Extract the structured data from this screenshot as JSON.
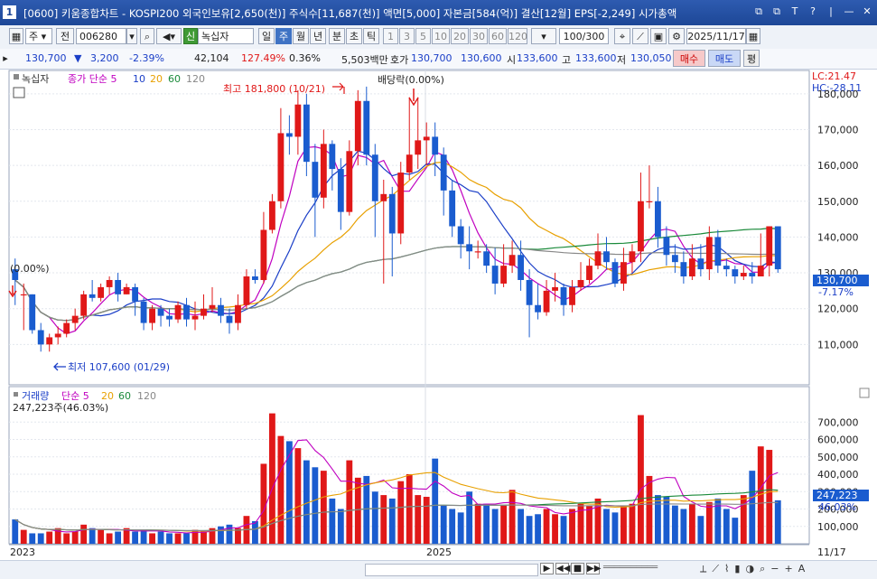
{
  "window": {
    "app_num": "1",
    "title": "[0600] 키움종합차트 - KOSPI200 외국인보유[2,650(천)] 주식수[11,687(천)] 액면[5,000] 자본금[584(억)] 결산[12월] EPS[-2,249] 시가총액",
    "buttons": [
      "⧉",
      "⧉",
      "T",
      "?",
      "|",
      "—",
      "✕"
    ]
  },
  "toolbar": {
    "period_day": "주",
    "stock_prefix": "전",
    "stock_code": "006280",
    "sound_icon": "speaker-icon",
    "stock_name_tag": "신",
    "stock_name": "녹십자",
    "periods": [
      "일",
      "주",
      "월",
      "년",
      "분",
      "초",
      "틱"
    ],
    "selected_period": "주",
    "intervals": [
      "1",
      "3",
      "5",
      "10",
      "20",
      "30",
      "60",
      "120"
    ],
    "count": "100/300",
    "date": "2025/11/17"
  },
  "quote": {
    "price": "130,700",
    "change": "3,200",
    "change_pct": "-2.39%",
    "volume": "42,104",
    "vol_ratio": "127.49%",
    "turnover": "0.36%",
    "amount": "5,503백만",
    "bid_label": "호가",
    "bid": "130,700",
    "ask": "130,600",
    "open_label": "시",
    "open": "133,600",
    "high_label": "고",
    "high": "133,600",
    "low_label": "저",
    "low": "130,050",
    "buy": "매수",
    "sell": "매도",
    "eval": "평"
  },
  "price_panel": {
    "legend_name": "녹십자",
    "legend_ma": "종가 단순",
    "ma_periods": [
      "5",
      "10",
      "20",
      "60",
      "120"
    ],
    "ma_colors": [
      "#c000c0",
      "#1a3ec7",
      "#e8a000",
      "#1a8a3a",
      "#888888"
    ],
    "lc": "LC:21.47",
    "hc": "HC:-28.11",
    "high_marker": "최고 181,800 (10/21)",
    "low_marker": "최저 107,600 (01/29)",
    "dividend_marker": "배당락(0.00%)",
    "left_marker": "(0.00%)",
    "y_ticks": [
      "180,000",
      "170,000",
      "160,000",
      "150,000",
      "140,000",
      "130,000",
      "120,000",
      "110,000"
    ],
    "current_price_label": "130,700",
    "current_change_label": "-7.17%"
  },
  "volume_panel": {
    "legend_name": "거래량",
    "legend_ma": "단순",
    "ma_periods": [
      "5",
      "20",
      "60",
      "120"
    ],
    "current_label": "247,223주(46.03%)",
    "y_ticks": [
      "700,000",
      "600,000",
      "500,000",
      "400,000",
      "300,000",
      "200,000",
      "100,000"
    ],
    "right_value": "247,223",
    "right_pct": "46.03%"
  },
  "x_axis": {
    "labels": [
      "2023",
      "2025"
    ],
    "right_label": "11/17"
  },
  "colors": {
    "up": "#e01818",
    "down": "#1a5ccf",
    "title_bg": "#1d4797"
  },
  "chart_data": {
    "type": "candlestick",
    "y_range": [
      100000,
      185000
    ],
    "candles": [
      [
        131,
        128,
        134,
        121
      ],
      [
        124,
        124,
        127,
        114
      ],
      [
        124,
        114,
        124,
        113
      ],
      [
        114,
        110,
        116,
        108
      ],
      [
        110,
        112,
        113,
        108
      ],
      [
        112,
        113,
        115,
        110
      ],
      [
        113,
        116,
        117,
        112
      ],
      [
        116,
        118,
        120,
        114
      ],
      [
        118,
        124,
        125,
        117
      ],
      [
        124,
        123,
        128,
        122
      ],
      [
        123,
        126,
        127,
        122
      ],
      [
        126,
        128,
        129,
        124
      ],
      [
        128,
        124,
        130,
        122
      ],
      [
        124,
        126,
        127,
        124
      ],
      [
        126,
        122,
        127,
        118
      ],
      [
        122,
        116,
        123,
        114
      ],
      [
        116,
        120,
        121,
        114
      ],
      [
        120,
        118,
        121,
        115
      ],
      [
        118,
        117,
        120,
        115
      ],
      [
        117,
        121,
        122,
        116
      ],
      [
        121,
        117,
        123,
        115
      ],
      [
        117,
        118,
        122,
        114
      ],
      [
        118,
        120,
        124,
        117
      ],
      [
        120,
        121,
        126,
        119
      ],
      [
        121,
        118,
        123,
        116
      ],
      [
        118,
        116,
        120,
        113
      ],
      [
        116,
        121,
        124,
        114
      ],
      [
        121,
        129,
        131,
        120
      ],
      [
        129,
        128,
        131,
        127
      ],
      [
        128,
        142,
        147,
        127
      ],
      [
        142,
        150,
        152,
        141
      ],
      [
        150,
        169,
        176,
        148
      ],
      [
        169,
        168,
        174,
        163
      ],
      [
        168,
        177,
        181,
        163
      ],
      [
        177,
        161,
        180,
        157
      ],
      [
        161,
        151,
        166,
        140
      ],
      [
        151,
        166,
        170,
        148
      ],
      [
        166,
        159,
        167,
        153
      ],
      [
        159,
        147,
        162,
        142
      ],
      [
        147,
        164,
        167,
        146
      ],
      [
        164,
        178,
        181,
        160
      ],
      [
        178,
        163,
        182,
        160
      ],
      [
        163,
        150,
        166,
        140
      ],
      [
        150,
        152,
        156,
        127
      ],
      [
        152,
        141,
        154,
        129
      ],
      [
        141,
        158,
        161,
        138
      ],
      [
        158,
        163,
        179,
        156
      ],
      [
        163,
        167,
        179,
        159
      ],
      [
        167,
        168,
        172,
        160
      ],
      [
        168,
        163,
        172,
        157
      ],
      [
        163,
        153,
        165,
        146
      ],
      [
        153,
        143,
        156,
        140
      ],
      [
        143,
        138,
        145,
        134
      ],
      [
        138,
        136,
        143,
        131
      ],
      [
        136,
        136,
        139,
        134
      ],
      [
        136,
        132,
        138,
        130
      ],
      [
        132,
        127,
        137,
        124
      ],
      [
        127,
        132,
        138,
        126
      ],
      [
        132,
        135,
        139,
        130
      ],
      [
        135,
        128,
        139,
        125
      ],
      [
        128,
        121,
        131,
        112
      ],
      [
        121,
        119,
        127,
        117
      ],
      [
        119,
        125,
        128,
        118
      ],
      [
        125,
        126,
        130,
        122
      ],
      [
        126,
        121,
        127,
        118
      ],
      [
        121,
        126,
        128,
        119
      ],
      [
        126,
        128,
        133,
        125
      ],
      [
        128,
        132,
        134,
        127
      ],
      [
        132,
        136,
        141,
        131
      ],
      [
        136,
        133,
        140,
        131
      ],
      [
        133,
        127,
        134,
        126
      ],
      [
        127,
        133,
        137,
        125
      ],
      [
        133,
        136,
        138,
        130
      ],
      [
        136,
        150,
        158,
        133
      ],
      [
        150,
        150,
        160,
        148
      ],
      [
        150,
        140,
        154,
        137
      ],
      [
        140,
        135,
        143,
        132
      ],
      [
        135,
        133,
        138,
        130
      ],
      [
        133,
        129,
        136,
        127
      ],
      [
        129,
        134,
        138,
        128
      ],
      [
        134,
        131,
        138,
        129
      ],
      [
        131,
        140,
        143,
        128
      ],
      [
        140,
        132,
        142,
        130
      ],
      [
        132,
        131,
        134,
        129
      ],
      [
        131,
        129,
        132,
        127
      ],
      [
        129,
        130,
        132,
        128
      ],
      [
        130,
        129,
        133,
        127
      ],
      [
        129,
        132,
        141,
        130
      ],
      [
        132,
        143,
        143,
        129
      ],
      [
        143,
        131,
        143,
        130
      ]
    ],
    "volumes": [
      140,
      80,
      60,
      60,
      70,
      90,
      60,
      70,
      110,
      90,
      80,
      60,
      70,
      90,
      70,
      80,
      60,
      70,
      60,
      60,
      60,
      80,
      70,
      90,
      100,
      110,
      90,
      160,
      130,
      460,
      750,
      620,
      590,
      550,
      480,
      440,
      420,
      260,
      200,
      480,
      380,
      390,
      300,
      280,
      260,
      360,
      400,
      280,
      270,
      490,
      220,
      200,
      180,
      300,
      230,
      230,
      200,
      220,
      310,
      200,
      160,
      170,
      200,
      170,
      160,
      200,
      230,
      220,
      260,
      200,
      180,
      220,
      230,
      740,
      390,
      280,
      270,
      220,
      200,
      230,
      160,
      240,
      260,
      200,
      150,
      280,
      420,
      560,
      540,
      250
    ]
  }
}
